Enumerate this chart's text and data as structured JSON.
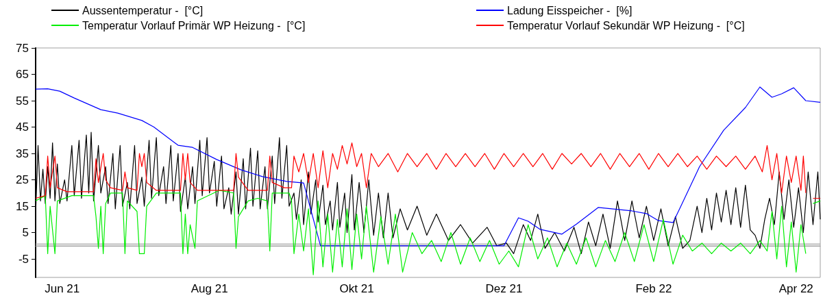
{
  "chart_data": {
    "type": "line",
    "legend": "top",
    "marker": "none",
    "line_style": "solid",
    "grid": false,
    "xlim": [
      "2021-05-21",
      "2022-04-11"
    ],
    "xticks": [
      {
        "value": "2021-06-01",
        "label": "Jun 21"
      },
      {
        "value": "2021-08-01",
        "label": "Aug 21"
      },
      {
        "value": "2021-10-01",
        "label": "Okt 21"
      },
      {
        "value": "2021-12-01",
        "label": "Dez 21"
      },
      {
        "value": "2022-02-01",
        "label": "Feb 22"
      },
      {
        "value": "2022-04-01",
        "label": "Apr 22"
      }
    ],
    "ylim": [
      -12,
      75
    ],
    "yticks": [
      -5,
      5,
      15,
      25,
      35,
      45,
      55,
      65,
      75
    ],
    "bands": [
      {
        "axis": "y",
        "from": 0,
        "to": 1,
        "color": "#a6a6a6"
      }
    ],
    "series": [
      {
        "name": "Aussentemperatur -  [°C]",
        "color": "#000000",
        "x": [
          "2021-05-21",
          "2021-05-22",
          "2021-05-23",
          "2021-05-24",
          "2021-05-25",
          "2021-05-26",
          "2021-05-27",
          "2021-05-28",
          "2021-05-29",
          "2021-05-30",
          "2021-05-31",
          "2021-06-02",
          "2021-06-03",
          "2021-06-05",
          "2021-06-06",
          "2021-06-08",
          "2021-06-09",
          "2021-06-11",
          "2021-06-12",
          "2021-06-13",
          "2021-06-14",
          "2021-06-16",
          "2021-06-17",
          "2021-06-19",
          "2021-06-20",
          "2021-06-22",
          "2021-06-23",
          "2021-06-25",
          "2021-06-26",
          "2021-06-28",
          "2021-06-29",
          "2021-07-01",
          "2021-07-02",
          "2021-07-04",
          "2021-07-05",
          "2021-07-07",
          "2021-07-08",
          "2021-07-10",
          "2021-07-11",
          "2021-07-13",
          "2021-07-14",
          "2021-07-16",
          "2021-07-17",
          "2021-07-19",
          "2021-07-20",
          "2021-07-22",
          "2021-07-23",
          "2021-07-25",
          "2021-07-26",
          "2021-07-28",
          "2021-07-29",
          "2021-07-31",
          "2021-08-01",
          "2021-08-03",
          "2021-08-04",
          "2021-08-06",
          "2021-08-07",
          "2021-08-09",
          "2021-08-10",
          "2021-08-12",
          "2021-08-13",
          "2021-08-15",
          "2021-08-16",
          "2021-08-18",
          "2021-08-19",
          "2021-08-21",
          "2021-08-22",
          "2021-08-24",
          "2021-08-25",
          "2021-08-27",
          "2021-08-28",
          "2021-08-30",
          "2021-08-31",
          "2021-09-02",
          "2021-09-03",
          "2021-09-05",
          "2021-09-06",
          "2021-09-08",
          "2021-09-09",
          "2021-09-11",
          "2021-09-12",
          "2021-09-14",
          "2021-09-15",
          "2021-09-17",
          "2021-09-18",
          "2021-09-20",
          "2021-09-21",
          "2021-09-23",
          "2021-09-24",
          "2021-09-26",
          "2021-09-27",
          "2021-09-29",
          "2021-09-30",
          "2021-10-02",
          "2021-10-04",
          "2021-10-06",
          "2021-10-08",
          "2021-10-10",
          "2021-10-12",
          "2021-10-14",
          "2021-10-16",
          "2021-10-19",
          "2021-10-22",
          "2021-10-26",
          "2021-10-30",
          "2021-11-03",
          "2021-11-08",
          "2021-11-13",
          "2021-11-18",
          "2021-11-24",
          "2021-11-28",
          "2021-12-02",
          "2021-12-05",
          "2021-12-09",
          "2021-12-12",
          "2021-12-15",
          "2021-12-18",
          "2021-12-22",
          "2021-12-26",
          "2021-12-30",
          "2022-01-02",
          "2022-01-05",
          "2022-01-08",
          "2022-01-11",
          "2022-01-14",
          "2022-01-17",
          "2022-01-20",
          "2022-01-23",
          "2022-01-26",
          "2022-01-29",
          "2022-02-01",
          "2022-02-04",
          "2022-02-07",
          "2022-02-10",
          "2022-02-13",
          "2022-02-16",
          "2022-02-19",
          "2022-02-21",
          "2022-02-23",
          "2022-02-25",
          "2022-02-27",
          "2022-03-01",
          "2022-03-03",
          "2022-03-05",
          "2022-03-07",
          "2022-03-09",
          "2022-03-11",
          "2022-03-13",
          "2022-03-15",
          "2022-03-17",
          "2022-03-19",
          "2022-03-21",
          "2022-03-23",
          "2022-03-25",
          "2022-03-27",
          "2022-03-29",
          "2022-03-31",
          "2022-04-02",
          "2022-04-04",
          "2022-04-06",
          "2022-04-08",
          "2022-04-10",
          "2022-04-11"
        ],
        "values": [
          12,
          38,
          17,
          29,
          16,
          30,
          18,
          39,
          17,
          31,
          16,
          25,
          17,
          38,
          19,
          40,
          18,
          42,
          20,
          43,
          17,
          38,
          20,
          30,
          16,
          35,
          14,
          38,
          15,
          24,
          14,
          38,
          16,
          26,
          15,
          40,
          18,
          41,
          19,
          30,
          16,
          38,
          17,
          35,
          13,
          26,
          14,
          30,
          16,
          40,
          19,
          41,
          20,
          32,
          15,
          34,
          14,
          22,
          12,
          28,
          12,
          33,
          14,
          37,
          15,
          36,
          14,
          30,
          14,
          34,
          16,
          41,
          18,
          38,
          15,
          20,
          10,
          25,
          8,
          28,
          12,
          25,
          9,
          23,
          8,
          17,
          6,
          24,
          7,
          20,
          5,
          27,
          6,
          24,
          5,
          25,
          4,
          20,
          3,
          20,
          3,
          14,
          6,
          15,
          4,
          12,
          2,
          8,
          1,
          7,
          0,
          1,
          -3,
          8,
          2,
          12,
          -1,
          5,
          -2,
          7,
          -3,
          9,
          0,
          12,
          -1,
          17,
          2,
          17,
          3,
          15,
          2,
          14,
          0,
          11,
          -1,
          2,
          15,
          5,
          18,
          6,
          20,
          9,
          21,
          8,
          22,
          7,
          23,
          6,
          4,
          -1,
          10,
          18,
          8,
          28,
          10,
          25,
          7,
          22,
          5,
          28,
          8,
          28,
          10
        ]
      },
      {
        "name": "Ladung Eisspeicher -  [%]",
        "color": "#0000ff",
        "x": [
          "2021-05-21",
          "2021-05-26",
          "2021-05-31",
          "2021-06-06",
          "2021-06-17",
          "2021-06-24",
          "2021-07-04",
          "2021-07-09",
          "2021-07-19",
          "2021-07-25",
          "2021-08-04",
          "2021-08-14",
          "2021-08-23",
          "2021-09-02",
          "2021-09-09",
          "2021-09-16",
          "2021-12-01",
          "2021-12-07",
          "2021-12-11",
          "2021-12-16",
          "2021-12-25",
          "2021-12-31",
          "2022-01-09",
          "2022-01-23",
          "2022-01-29",
          "2022-02-03",
          "2022-02-09",
          "2022-02-12",
          "2022-02-20",
          "2022-03-02",
          "2022-03-11",
          "2022-03-17",
          "2022-03-22",
          "2022-03-26",
          "2022-03-31",
          "2022-04-05",
          "2022-04-11"
        ],
        "values": [
          59.4,
          59.5,
          58.6,
          56,
          51.6,
          50.3,
          47.5,
          45,
          38.1,
          37.3,
          32.7,
          28.8,
          26.2,
          24.4,
          23.8,
          0,
          0,
          10.6,
          9.3,
          6.2,
          4.4,
          8.2,
          14.5,
          13.2,
          12.2,
          9.5,
          8.8,
          14.5,
          30,
          43.8,
          52.4,
          60.2,
          56.3,
          57.6,
          59.9,
          55,
          54.4
        ]
      },
      {
        "name": "Temperatur Vorlauf Primär WP Heizung -  [°C]",
        "color": "#00ee00",
        "x": [
          "2021-05-21",
          "2021-05-25",
          "2021-05-26",
          "2021-05-27",
          "2021-05-29",
          "2021-05-30",
          "2021-06-05",
          "2021-06-14",
          "2021-06-15",
          "2021-06-16",
          "2021-06-17",
          "2021-06-18",
          "2021-06-19",
          "2021-06-21",
          "2021-06-26",
          "2021-06-27",
          "2021-06-28",
          "2021-07-02",
          "2021-07-03",
          "2021-07-05",
          "2021-07-06",
          "2021-07-10",
          "2021-07-20",
          "2021-07-21",
          "2021-07-22",
          "2021-07-23",
          "2021-07-24",
          "2021-07-26",
          "2021-07-27",
          "2021-08-05",
          "2021-08-11",
          "2021-08-12",
          "2021-08-13",
          "2021-08-15",
          "2021-08-17",
          "2021-08-21",
          "2021-08-25",
          "2021-08-26",
          "2021-08-27",
          "2021-09-03",
          "2021-09-04",
          "2021-09-05",
          "2021-09-07",
          "2021-09-09",
          "2021-09-11",
          "2021-09-13",
          "2021-09-15",
          "2021-09-17",
          "2021-09-19",
          "2021-09-21",
          "2021-09-23",
          "2021-09-25",
          "2021-09-27",
          "2021-09-29",
          "2021-10-01",
          "2021-10-03",
          "2021-10-05",
          "2021-10-08",
          "2021-10-11",
          "2021-10-14",
          "2021-10-17",
          "2021-10-20",
          "2021-10-24",
          "2021-10-28",
          "2021-11-01",
          "2021-11-05",
          "2021-11-09",
          "2021-11-13",
          "2021-11-17",
          "2021-11-21",
          "2021-11-25",
          "2021-11-29",
          "2021-12-03",
          "2021-12-07",
          "2021-12-11",
          "2021-12-15",
          "2021-12-19",
          "2021-12-23",
          "2021-12-27",
          "2021-12-31",
          "2022-01-04",
          "2022-01-08",
          "2022-01-12",
          "2022-01-16",
          "2022-01-20",
          "2022-01-24",
          "2022-01-28",
          "2022-02-01",
          "2022-02-05",
          "2022-02-09",
          "2022-02-13",
          "2022-02-17",
          "2022-02-21",
          "2022-02-25",
          "2022-03-01",
          "2022-03-05",
          "2022-03-09",
          "2022-03-13",
          "2022-03-17",
          "2022-03-20",
          "2022-03-22",
          "2022-03-24",
          "2022-03-26",
          "2022-03-28",
          "2022-03-30",
          "2022-04-01",
          "2022-04-03",
          "2022-04-05",
          "2022-04-06",
          "2022-04-08",
          "2022-04-11"
        ],
        "values": [
          17,
          19,
          -3,
          15,
          -3,
          17,
          19,
          19,
          11,
          -1,
          15,
          -3,
          16,
          20,
          20,
          -3,
          17,
          13,
          -3,
          -3,
          15,
          20,
          20,
          -3,
          12,
          -3,
          8,
          -1,
          17,
          21,
          20,
          -1,
          11,
          14,
          17,
          18,
          17,
          -2,
          20,
          20,
          17,
          -3,
          12,
          -2,
          14,
          -11,
          17,
          -8,
          12,
          -10,
          10,
          -8,
          14,
          -9,
          12,
          -5,
          15,
          -10,
          11,
          -7,
          12,
          -10,
          5,
          -3,
          2,
          -6,
          5,
          -7,
          3,
          -6,
          2,
          -7,
          -2,
          -8,
          8,
          -5,
          3,
          -8,
          1,
          -7,
          3,
          -8,
          2,
          -6,
          5,
          -6,
          8,
          -6,
          10,
          -7,
          4,
          -2,
          1,
          -3,
          1,
          -2,
          1,
          -3,
          2,
          -2,
          13,
          -5,
          15,
          -8,
          9,
          -10,
          8,
          -3,
          null,
          16,
          17
        ]
      },
      {
        "name": "Temperatur Vorlauf Sekundär WP Heizung -  [°C]",
        "color": "#ff0000",
        "x": [
          "2021-05-21",
          "2021-05-25",
          "2021-05-26",
          "2021-05-27",
          "2021-05-29",
          "2021-05-30",
          "2021-06-03",
          "2021-06-14",
          "2021-06-15",
          "2021-06-16",
          "2021-06-18",
          "2021-06-19",
          "2021-06-21",
          "2021-06-26",
          "2021-06-27",
          "2021-06-28",
          "2021-07-02",
          "2021-07-03",
          "2021-07-04",
          "2021-07-05",
          "2021-07-06",
          "2021-07-10",
          "2021-07-20",
          "2021-07-21",
          "2021-07-22",
          "2021-07-23",
          "2021-07-24",
          "2021-07-27",
          "2021-08-05",
          "2021-08-11",
          "2021-08-12",
          "2021-08-13",
          "2021-08-17",
          "2021-08-25",
          "2021-08-26",
          "2021-08-27",
          "2021-09-01",
          "2021-09-04",
          "2021-09-05",
          "2021-09-07",
          "2021-09-09",
          "2021-09-11",
          "2021-09-13",
          "2021-09-15",
          "2021-09-17",
          "2021-09-19",
          "2021-09-21",
          "2021-09-23",
          "2021-09-25",
          "2021-09-27",
          "2021-09-29",
          "2021-10-01",
          "2021-10-03",
          "2021-10-05",
          "2021-10-07",
          "2021-10-10",
          "2021-10-14",
          "2021-10-18",
          "2021-10-22",
          "2021-10-26",
          "2021-10-30",
          "2021-11-03",
          "2021-11-07",
          "2021-11-11",
          "2021-11-15",
          "2021-11-19",
          "2021-11-23",
          "2021-11-27",
          "2021-12-01",
          "2021-12-05",
          "2021-12-09",
          "2021-12-13",
          "2021-12-17",
          "2021-12-21",
          "2021-12-25",
          "2021-12-29",
          "2022-01-02",
          "2022-01-06",
          "2022-01-10",
          "2022-01-14",
          "2022-01-18",
          "2022-01-22",
          "2022-01-26",
          "2022-01-30",
          "2022-02-03",
          "2022-02-07",
          "2022-02-11",
          "2022-02-15",
          "2022-02-19",
          "2022-02-23",
          "2022-02-27",
          "2022-03-03",
          "2022-03-07",
          "2022-03-11",
          "2022-03-15",
          "2022-03-18",
          "2022-03-20",
          "2022-03-22",
          "2022-03-24",
          "2022-03-26",
          "2022-03-28",
          "2022-03-30",
          "2022-04-01",
          "2022-04-03",
          "2022-04-04",
          "2022-04-05",
          "2022-04-07",
          "2022-04-08",
          "2022-04-11"
        ],
        "values": [
          18,
          19,
          34,
          22,
          34,
          22,
          20.5,
          20.5,
          33,
          24,
          35,
          25,
          22,
          21,
          28,
          22,
          21,
          35,
          30,
          35,
          24,
          21,
          21,
          35,
          25,
          35,
          24,
          21,
          21,
          21,
          35,
          26,
          21,
          21,
          34,
          24,
          22,
          22,
          34,
          28,
          35,
          24,
          35,
          22,
          36,
          22,
          35,
          29,
          38,
          31,
          39,
          30,
          35,
          22,
          35,
          30,
          35,
          28,
          35,
          30,
          35,
          29,
          35,
          30,
          35,
          30,
          35,
          29,
          35,
          30,
          35,
          30,
          35,
          29,
          35,
          31,
          35,
          30,
          35,
          29,
          35,
          30,
          35,
          29,
          35,
          30,
          35,
          30,
          34,
          29,
          34,
          30,
          34,
          29,
          34,
          28,
          38,
          25,
          35,
          20,
          34,
          24,
          34,
          21,
          34,
          20,
          null,
          18,
          18
        ]
      }
    ]
  }
}
